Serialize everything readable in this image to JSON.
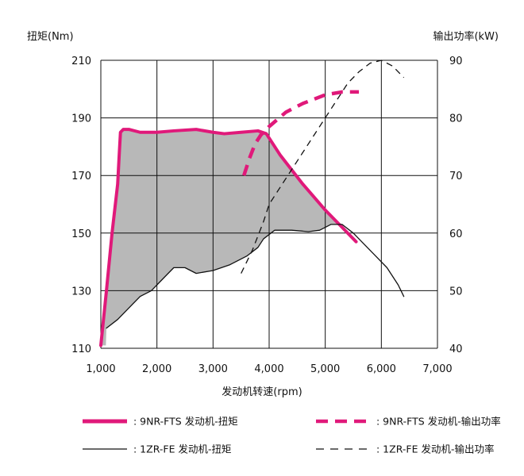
{
  "chart_data": {
    "type": "line",
    "xlabel": "发动机转速(rpm)",
    "ylabel_left": "扭矩(Nm)",
    "ylabel_right": "输出功率(kW)",
    "x_ticks": [
      "1,000",
      "2,000",
      "3,000",
      "4,000",
      "5,000",
      "6,000",
      "7,000"
    ],
    "y_left_ticks": [
      "210",
      "190",
      "170",
      "150",
      "130",
      "110"
    ],
    "y_right_ticks": [
      "90",
      "80",
      "70",
      "60",
      "50",
      "40"
    ],
    "xlim": [
      1000,
      7000
    ],
    "ylim_left": [
      110,
      210
    ],
    "ylim_right": [
      40,
      90
    ],
    "grid": true,
    "fill_between": {
      "upper": "9NR-FTS 发动机-扭矩",
      "lower": "1ZR-FE 发动机-扭矩",
      "color": "#b8b8b8"
    },
    "series": [
      {
        "name": "9NR-FTS 发动机-扭矩",
        "axis": "left",
        "color": "#e0197a",
        "style": "solid-thick",
        "x": [
          1000,
          1100,
          1200,
          1300,
          1330,
          1350,
          1400,
          1500,
          1700,
          2000,
          2300,
          2700,
          3000,
          3200,
          3500,
          3800,
          3950,
          4200,
          4600,
          5000,
          5300,
          5550
        ],
        "y": [
          111,
          130,
          150,
          167,
          178,
          185,
          186,
          186,
          185,
          185,
          185.5,
          186,
          185,
          184.5,
          185,
          185.5,
          184.5,
          177,
          167,
          158,
          152,
          147
        ]
      },
      {
        "name": "9NR-FTS 发动机-输出功率",
        "axis": "right",
        "color": "#e0197a",
        "style": "dashed-thick",
        "x": [
          3550,
          3650,
          3750,
          3850,
          4000,
          4300,
          4600,
          5000,
          5300,
          5600
        ],
        "y": [
          70,
          73,
          75.5,
          77,
          78.5,
          81,
          82.5,
          84,
          84.5,
          84.5
        ]
      },
      {
        "name": "1ZR-FE 发动机-扭矩",
        "axis": "left",
        "color": "#111111",
        "style": "solid-thin",
        "x": [
          1100,
          1300,
          1500,
          1700,
          1900,
          2100,
          2300,
          2500,
          2700,
          3000,
          3300,
          3600,
          3800,
          3900,
          4100,
          4400,
          4700,
          4900,
          5100,
          5300,
          5500,
          5700,
          5900,
          6100,
          6300,
          6400
        ],
        "y": [
          117,
          120,
          124,
          128,
          130,
          134,
          138,
          138,
          136,
          137,
          139,
          142,
          145,
          148,
          151,
          151,
          150.5,
          151,
          153,
          153,
          150,
          146,
          142,
          138,
          132,
          128
        ]
      },
      {
        "name": "1ZR-FE 发动机-输出功率",
        "axis": "right",
        "color": "#111111",
        "style": "dashed-thin",
        "x": [
          3500,
          3700,
          3900,
          4000,
          4200,
          4400,
          4600,
          4800,
          5000,
          5200,
          5400,
          5600,
          5800,
          6000,
          6200,
          6400
        ],
        "y": [
          53,
          57,
          62,
          65,
          68,
          71,
          74,
          77,
          80,
          83,
          86,
          88,
          89.5,
          90,
          89,
          87
        ]
      }
    ],
    "legend": [
      {
        "label": ": 9NR-FTS 发动机-扭矩",
        "series": "9NR-FTS 发动机-扭矩"
      },
      {
        "label": ": 9NR-FTS 发动机-输出功率",
        "series": "9NR-FTS 发动机-输出功率"
      },
      {
        "label": ": 1ZR-FE 发动机-扭矩",
        "series": "1ZR-FE 发动机-扭矩"
      },
      {
        "label": ": 1ZR-FE 发动机-输出功率",
        "series": "1ZR-FE 发动机-输出功率"
      }
    ],
    "legend_placement": "bottom"
  }
}
